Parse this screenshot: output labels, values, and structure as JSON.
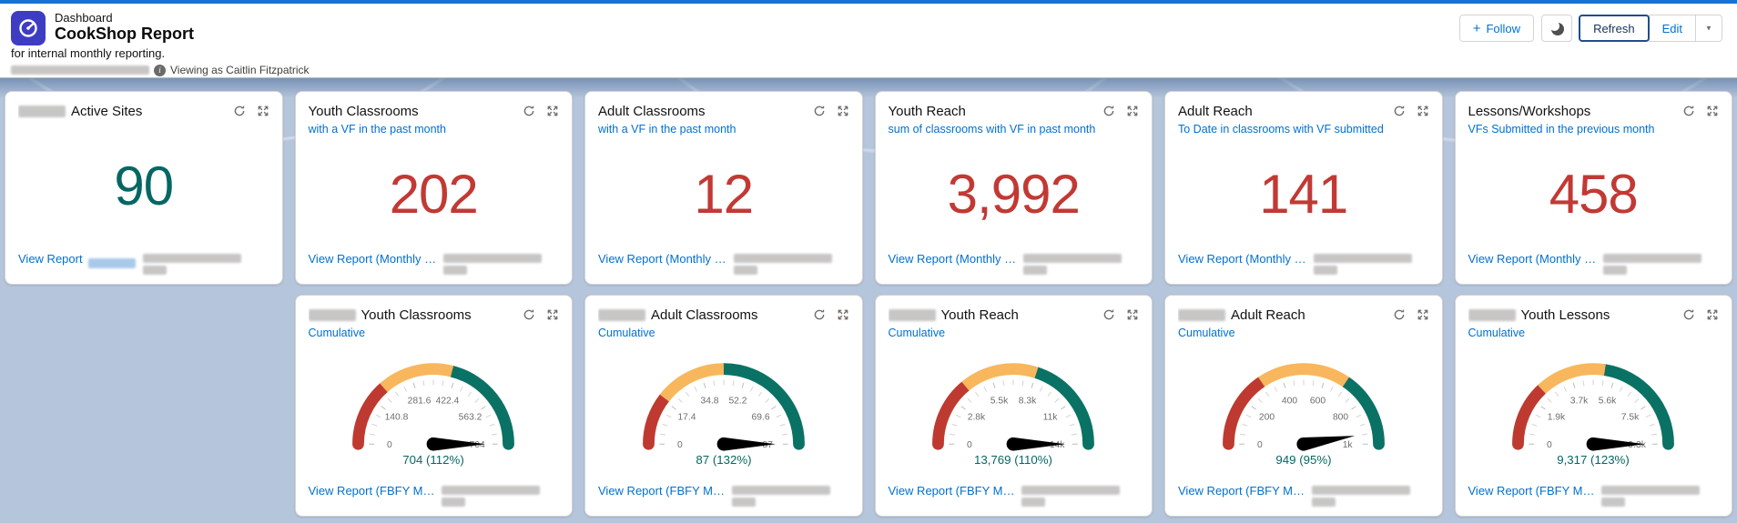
{
  "header": {
    "object_label": "Dashboard",
    "title": "CookShop Report",
    "description": "for internal monthly reporting.",
    "as_of_redacted": true,
    "viewing_as": "Viewing as Caitlin Fitzpatrick",
    "actions": {
      "follow_label": "Follow",
      "refresh_label": "Refresh",
      "edit_label": "Edit"
    },
    "icons": {
      "plus": "+",
      "caret": "▼",
      "info": "i"
    }
  },
  "colors": {
    "brand_bar": "#1b70d4",
    "link_blue": "#0070d2",
    "metric_red": "#C23934",
    "metric_teal": "#056764",
    "gauge_red": "#BE3A31",
    "gauge_orange": "#F8B75C",
    "gauge_teal": "#0A7264",
    "dashboard_background": "#b5c5db"
  },
  "metric_cards": [
    {
      "title": "Active Sites",
      "prefix_redacted": true,
      "subtitle": "",
      "value": "90",
      "value_color": "#056764",
      "view_report_label": "View Report",
      "link_suffix_redacted": true
    },
    {
      "title": "Youth Classrooms",
      "prefix_redacted": false,
      "subtitle": "with a VF in the past month",
      "value": "202",
      "value_color": "#C23934",
      "view_report_label": "View Report (Monthly …"
    },
    {
      "title": "Adult Classrooms",
      "prefix_redacted": false,
      "subtitle": "with a VF in the past month",
      "value": "12",
      "value_color": "#C23934",
      "view_report_label": "View Report (Monthly …"
    },
    {
      "title": "Youth Reach",
      "prefix_redacted": false,
      "subtitle": "sum of classrooms with VF in past month",
      "value": "3,992",
      "value_color": "#C23934",
      "view_report_label": "View Report (Monthly …"
    },
    {
      "title": "Adult Reach",
      "prefix_redacted": false,
      "subtitle": "To Date in classrooms with VF submitted",
      "value": "141",
      "value_color": "#C23934",
      "view_report_label": "View Report (Monthly …"
    },
    {
      "title": "Lessons/Workshops",
      "prefix_redacted": false,
      "subtitle": "VFs Submitted in the previous month",
      "value": "458",
      "value_color": "#C23934",
      "view_report_label": "View Report (Monthly …"
    }
  ],
  "gauge_cards": [
    {
      "title": "Youth Classrooms",
      "prefix_redacted": true,
      "subtitle": "Cumulative",
      "view_report_label": "View Report (FBFY M…"
    },
    {
      "title": "Adult Classrooms",
      "prefix_redacted": true,
      "subtitle": "Cumulative",
      "view_report_label": "View Report (FBFY M…"
    },
    {
      "title": "Youth Reach",
      "prefix_redacted": true,
      "subtitle": "Cumulative",
      "view_report_label": "View Report (FBFY M…"
    },
    {
      "title": "Adult Reach",
      "prefix_redacted": true,
      "subtitle": "Cumulative",
      "view_report_label": "View Report (FBFY M…"
    },
    {
      "title": "Youth Lessons",
      "prefix_redacted": true,
      "subtitle": "Cumulative",
      "view_report_label": "View Report (FBFY M…"
    }
  ],
  "chart_data": [
    {
      "type": "gauge",
      "card": "Youth Classrooms",
      "subtitle": "Cumulative",
      "min": 0,
      "max": 704,
      "value": 704,
      "percent": 112,
      "value_label": "704 (112%)",
      "tick_labels": [
        "0",
        "140.8",
        "281.6",
        "422.4",
        "563.2",
        "704"
      ],
      "segment_stops_fraction": [
        0.27,
        0.58
      ],
      "segment_colors": [
        "#BE3A31",
        "#F8B75C",
        "#0A7264"
      ],
      "needle_fraction": 1.0
    },
    {
      "type": "gauge",
      "card": "Adult Classrooms",
      "subtitle": "Cumulative",
      "min": 0,
      "max": 87,
      "value": 87,
      "percent": 132,
      "value_label": "87 (132%)",
      "tick_labels": [
        "0",
        "17.4",
        "34.8",
        "52.2",
        "69.6",
        "87"
      ],
      "segment_stops_fraction": [
        0.21,
        0.5
      ],
      "segment_colors": [
        "#BE3A31",
        "#F8B75C",
        "#0A7264"
      ],
      "needle_fraction": 1.0
    },
    {
      "type": "gauge",
      "card": "Youth Reach",
      "subtitle": "Cumulative",
      "min": 0,
      "max": 13769,
      "value": 13769,
      "percent": 110,
      "value_label": "13,769 (110%)",
      "tick_labels": [
        "0",
        "2.8k",
        "5.5k",
        "8.3k",
        "11k",
        "14k"
      ],
      "segment_stops_fraction": [
        0.28,
        0.6
      ],
      "segment_colors": [
        "#BE3A31",
        "#F8B75C",
        "#0A7264"
      ],
      "needle_fraction": 1.0
    },
    {
      "type": "gauge",
      "card": "Adult Reach",
      "subtitle": "Cumulative",
      "min": 0,
      "max": 1000,
      "value": 949,
      "percent": 95,
      "value_label": "949 (95%)",
      "tick_labels": [
        "0",
        "200",
        "400",
        "600",
        "800",
        "1k"
      ],
      "segment_stops_fraction": [
        0.31,
        0.69
      ],
      "segment_colors": [
        "#BE3A31",
        "#F8B75C",
        "#0A7264"
      ],
      "needle_fraction": 0.949
    },
    {
      "type": "gauge",
      "card": "Youth Lessons",
      "subtitle": "Cumulative",
      "min": 0,
      "max": 9317,
      "value": 9317,
      "percent": 123,
      "value_label": "9,317 (123%)",
      "tick_labels": [
        "0",
        "1.9k",
        "3.7k",
        "5.6k",
        "7.5k",
        "9.3k"
      ],
      "segment_stops_fraction": [
        0.26,
        0.55
      ],
      "segment_colors": [
        "#BE3A31",
        "#F8B75C",
        "#0A7264"
      ],
      "needle_fraction": 1.0
    }
  ]
}
